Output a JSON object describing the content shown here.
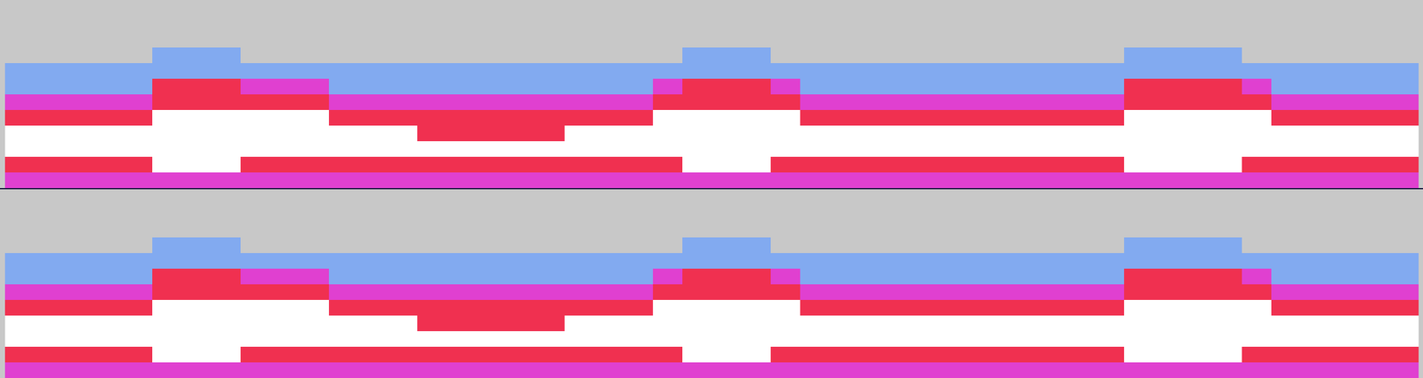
{
  "chart_data": [
    {
      "type": "heatmap",
      "tick_labels": false,
      "zlim": [
        0,
        4
      ],
      "colors": [
        "#c8c8c8",
        "#82aaf0",
        "#e040d0",
        "#f03050",
        "#ffffff"
      ],
      "cells": [
        [
          0,
          0,
          0,
          0,
          0,
          0,
          0,
          0,
          0,
          0,
          0,
          0,
          0,
          0,
          0,
          0,
          0,
          0,
          0,
          0,
          0,
          0,
          0,
          0,
          0,
          0,
          0,
          0,
          0,
          0,
          0,
          0,
          0,
          0,
          0,
          0,
          0,
          0,
          0,
          0,
          0,
          0,
          0,
          0,
          0,
          0,
          0,
          0
        ],
        [
          0,
          0,
          0,
          0,
          0,
          0,
          0,
          0,
          0,
          0,
          0,
          0,
          0,
          0,
          0,
          0,
          0,
          0,
          0,
          0,
          0,
          0,
          0,
          0,
          0,
          0,
          0,
          0,
          0,
          0,
          0,
          0,
          0,
          0,
          0,
          0,
          0,
          0,
          0,
          0,
          0,
          0,
          0,
          0,
          0,
          0,
          0,
          0
        ],
        [
          0,
          0,
          0,
          0,
          0,
          0,
          0,
          0,
          0,
          0,
          0,
          0,
          0,
          0,
          0,
          0,
          0,
          0,
          0,
          0,
          0,
          0,
          0,
          0,
          0,
          0,
          0,
          0,
          0,
          0,
          0,
          0,
          0,
          0,
          0,
          0,
          0,
          0,
          0,
          0,
          0,
          0,
          0,
          0,
          0,
          0,
          0,
          0
        ],
        [
          0,
          0,
          0,
          0,
          0,
          1,
          1,
          1,
          0,
          0,
          0,
          0,
          0,
          0,
          0,
          0,
          0,
          0,
          0,
          0,
          0,
          0,
          0,
          1,
          1,
          1,
          0,
          0,
          0,
          0,
          0,
          0,
          0,
          0,
          0,
          0,
          0,
          0,
          1,
          1,
          1,
          1,
          0,
          0,
          0,
          0,
          0,
          0
        ],
        [
          1,
          1,
          1,
          1,
          1,
          1,
          1,
          1,
          1,
          1,
          1,
          1,
          1,
          1,
          1,
          1,
          1,
          1,
          1,
          1,
          1,
          1,
          1,
          1,
          1,
          1,
          1,
          1,
          1,
          1,
          1,
          1,
          1,
          1,
          1,
          1,
          1,
          1,
          1,
          1,
          1,
          1,
          1,
          1,
          1,
          1,
          1,
          1
        ],
        [
          1,
          1,
          1,
          1,
          1,
          3,
          3,
          3,
          2,
          2,
          2,
          1,
          1,
          1,
          1,
          1,
          1,
          1,
          1,
          1,
          1,
          1,
          2,
          3,
          3,
          3,
          2,
          1,
          1,
          1,
          1,
          1,
          1,
          1,
          1,
          1,
          1,
          1,
          3,
          3,
          3,
          3,
          2,
          1,
          1,
          1,
          1,
          1
        ],
        [
          2,
          2,
          2,
          2,
          2,
          3,
          3,
          3,
          3,
          3,
          3,
          2,
          2,
          2,
          2,
          2,
          2,
          2,
          2,
          2,
          2,
          2,
          3,
          3,
          3,
          3,
          3,
          2,
          2,
          2,
          2,
          2,
          2,
          2,
          2,
          2,
          2,
          2,
          3,
          3,
          3,
          3,
          3,
          2,
          2,
          2,
          2,
          2
        ],
        [
          3,
          3,
          3,
          3,
          3,
          4,
          4,
          4,
          4,
          4,
          4,
          3,
          3,
          3,
          3,
          3,
          3,
          3,
          3,
          3,
          3,
          3,
          4,
          4,
          4,
          4,
          4,
          3,
          3,
          3,
          3,
          3,
          3,
          3,
          3,
          3,
          3,
          3,
          4,
          4,
          4,
          4,
          4,
          3,
          3,
          3,
          3,
          3
        ],
        [
          4,
          4,
          4,
          4,
          4,
          4,
          4,
          4,
          4,
          4,
          4,
          4,
          4,
          4,
          3,
          3,
          3,
          3,
          3,
          4,
          4,
          4,
          4,
          4,
          4,
          4,
          4,
          4,
          4,
          4,
          4,
          4,
          4,
          4,
          4,
          4,
          4,
          4,
          4,
          4,
          4,
          4,
          4,
          4,
          4,
          4,
          4,
          4
        ],
        [
          4,
          4,
          4,
          4,
          4,
          4,
          4,
          4,
          4,
          4,
          4,
          4,
          4,
          4,
          4,
          4,
          4,
          4,
          4,
          4,
          4,
          4,
          4,
          4,
          4,
          4,
          4,
          4,
          4,
          4,
          4,
          4,
          4,
          4,
          4,
          4,
          4,
          4,
          4,
          4,
          4,
          4,
          4,
          4,
          4,
          4,
          4,
          4
        ],
        [
          3,
          3,
          3,
          3,
          3,
          4,
          4,
          4,
          3,
          3,
          3,
          3,
          3,
          3,
          3,
          3,
          3,
          3,
          3,
          3,
          3,
          3,
          3,
          4,
          4,
          4,
          3,
          3,
          3,
          3,
          3,
          3,
          3,
          3,
          3,
          3,
          3,
          3,
          4,
          4,
          4,
          4,
          3,
          3,
          3,
          3,
          3,
          3
        ],
        [
          2,
          2,
          2,
          2,
          2,
          2,
          2,
          2,
          2,
          2,
          2,
          2,
          2,
          2,
          2,
          2,
          2,
          2,
          2,
          2,
          2,
          2,
          2,
          2,
          2,
          2,
          2,
          2,
          2,
          2,
          2,
          2,
          2,
          2,
          2,
          2,
          2,
          2,
          2,
          2,
          2,
          2,
          2,
          2,
          2,
          2,
          2,
          2
        ]
      ]
    },
    {
      "type": "heatmap",
      "tick_labels": false,
      "zlim": [
        0,
        4
      ],
      "colors": [
        "#c8c8c8",
        "#82aaf0",
        "#e040d0",
        "#f03050",
        "#ffffff"
      ],
      "cells": [
        [
          0,
          0,
          0,
          0,
          0,
          0,
          0,
          0,
          0,
          0,
          0,
          0,
          0,
          0,
          0,
          0,
          0,
          0,
          0,
          0,
          0,
          0,
          0,
          0,
          0,
          0,
          0,
          0,
          0,
          0,
          0,
          0,
          0,
          0,
          0,
          0,
          0,
          0,
          0,
          0,
          0,
          0,
          0,
          0,
          0,
          0,
          0,
          0
        ],
        [
          0,
          0,
          0,
          0,
          0,
          0,
          0,
          0,
          0,
          0,
          0,
          0,
          0,
          0,
          0,
          0,
          0,
          0,
          0,
          0,
          0,
          0,
          0,
          0,
          0,
          0,
          0,
          0,
          0,
          0,
          0,
          0,
          0,
          0,
          0,
          0,
          0,
          0,
          0,
          0,
          0,
          0,
          0,
          0,
          0,
          0,
          0,
          0
        ],
        [
          0,
          0,
          0,
          0,
          0,
          0,
          0,
          0,
          0,
          0,
          0,
          0,
          0,
          0,
          0,
          0,
          0,
          0,
          0,
          0,
          0,
          0,
          0,
          0,
          0,
          0,
          0,
          0,
          0,
          0,
          0,
          0,
          0,
          0,
          0,
          0,
          0,
          0,
          0,
          0,
          0,
          0,
          0,
          0,
          0,
          0,
          0,
          0
        ],
        [
          0,
          0,
          0,
          0,
          0,
          1,
          1,
          1,
          0,
          0,
          0,
          0,
          0,
          0,
          0,
          0,
          0,
          0,
          0,
          0,
          0,
          0,
          0,
          1,
          1,
          1,
          0,
          0,
          0,
          0,
          0,
          0,
          0,
          0,
          0,
          0,
          0,
          0,
          1,
          1,
          1,
          1,
          0,
          0,
          0,
          0,
          0,
          0
        ],
        [
          1,
          1,
          1,
          1,
          1,
          1,
          1,
          1,
          1,
          1,
          1,
          1,
          1,
          1,
          1,
          1,
          1,
          1,
          1,
          1,
          1,
          1,
          1,
          1,
          1,
          1,
          1,
          1,
          1,
          1,
          1,
          1,
          1,
          1,
          1,
          1,
          1,
          1,
          1,
          1,
          1,
          1,
          1,
          1,
          1,
          1,
          1,
          1
        ],
        [
          1,
          1,
          1,
          1,
          1,
          3,
          3,
          3,
          2,
          2,
          2,
          1,
          1,
          1,
          1,
          1,
          1,
          1,
          1,
          1,
          1,
          1,
          2,
          3,
          3,
          3,
          2,
          1,
          1,
          1,
          1,
          1,
          1,
          1,
          1,
          1,
          1,
          1,
          3,
          3,
          3,
          3,
          2,
          1,
          1,
          1,
          1,
          1
        ],
        [
          2,
          2,
          2,
          2,
          2,
          3,
          3,
          3,
          3,
          3,
          3,
          2,
          2,
          2,
          2,
          2,
          2,
          2,
          2,
          2,
          2,
          2,
          3,
          3,
          3,
          3,
          3,
          2,
          2,
          2,
          2,
          2,
          2,
          2,
          2,
          2,
          2,
          2,
          3,
          3,
          3,
          3,
          3,
          2,
          2,
          2,
          2,
          2
        ],
        [
          3,
          3,
          3,
          3,
          3,
          4,
          4,
          4,
          4,
          4,
          4,
          3,
          3,
          3,
          3,
          3,
          3,
          3,
          3,
          3,
          3,
          3,
          4,
          4,
          4,
          4,
          4,
          3,
          3,
          3,
          3,
          3,
          3,
          3,
          3,
          3,
          3,
          3,
          4,
          4,
          4,
          4,
          4,
          3,
          3,
          3,
          3,
          3
        ],
        [
          4,
          4,
          4,
          4,
          4,
          4,
          4,
          4,
          4,
          4,
          4,
          4,
          4,
          4,
          3,
          3,
          3,
          3,
          3,
          4,
          4,
          4,
          4,
          4,
          4,
          4,
          4,
          4,
          4,
          4,
          4,
          4,
          4,
          4,
          4,
          4,
          4,
          4,
          4,
          4,
          4,
          4,
          4,
          4,
          4,
          4,
          4,
          4
        ],
        [
          4,
          4,
          4,
          4,
          4,
          4,
          4,
          4,
          4,
          4,
          4,
          4,
          4,
          4,
          4,
          4,
          4,
          4,
          4,
          4,
          4,
          4,
          4,
          4,
          4,
          4,
          4,
          4,
          4,
          4,
          4,
          4,
          4,
          4,
          4,
          4,
          4,
          4,
          4,
          4,
          4,
          4,
          4,
          4,
          4,
          4,
          4,
          4
        ],
        [
          3,
          3,
          3,
          3,
          3,
          4,
          4,
          4,
          3,
          3,
          3,
          3,
          3,
          3,
          3,
          3,
          3,
          3,
          3,
          3,
          3,
          3,
          3,
          4,
          4,
          4,
          3,
          3,
          3,
          3,
          3,
          3,
          3,
          3,
          3,
          3,
          3,
          3,
          4,
          4,
          4,
          4,
          3,
          3,
          3,
          3,
          3,
          3
        ],
        [
          2,
          2,
          2,
          2,
          2,
          2,
          2,
          2,
          2,
          2,
          2,
          2,
          2,
          2,
          2,
          2,
          2,
          2,
          2,
          2,
          2,
          2,
          2,
          2,
          2,
          2,
          2,
          2,
          2,
          2,
          2,
          2,
          2,
          2,
          2,
          2,
          2,
          2,
          2,
          2,
          2,
          2,
          2,
          2,
          2,
          2,
          2,
          2
        ]
      ]
    }
  ]
}
